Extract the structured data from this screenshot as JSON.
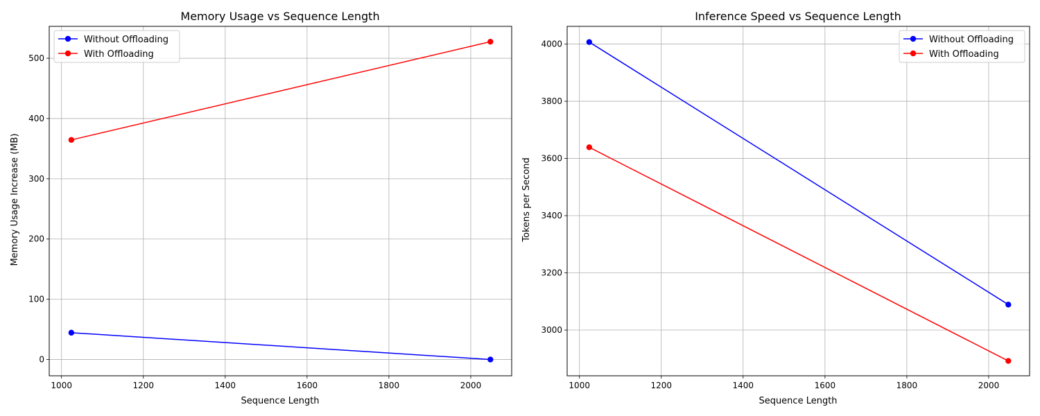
{
  "chart_data": [
    {
      "type": "line",
      "title": "Memory Usage vs Sequence Length",
      "xlabel": "Sequence Length",
      "ylabel": "Memory Usage Increase (MB)",
      "xlim": [
        970,
        2100
      ],
      "ylim": [
        -27,
        553
      ],
      "xticks": [
        1000,
        1200,
        1400,
        1600,
        1800,
        2000
      ],
      "yticks": [
        0,
        100,
        200,
        300,
        400,
        500
      ],
      "grid": true,
      "legend_position": "upper left",
      "series": [
        {
          "name": "Without Offloading",
          "color": "#0000ff",
          "x": [
            1024,
            2048
          ],
          "y": [
            44.5,
            0.0
          ]
        },
        {
          "name": "With Offloading",
          "color": "#ff0000",
          "x": [
            1024,
            2048
          ],
          "y": [
            364.5,
            527.5
          ]
        }
      ]
    },
    {
      "type": "line",
      "title": "Inference Speed vs Sequence Length",
      "xlabel": "Sequence Length",
      "ylabel": "Tokens per Second",
      "xlim": [
        970,
        2100
      ],
      "ylim": [
        2840,
        4062
      ],
      "xticks": [
        1000,
        1200,
        1400,
        1600,
        1800,
        2000
      ],
      "yticks": [
        3000,
        3200,
        3400,
        3600,
        3800,
        4000
      ],
      "grid": true,
      "legend_position": "upper right",
      "series": [
        {
          "name": "Without Offloading",
          "color": "#0000ff",
          "x": [
            1024,
            2048
          ],
          "y": [
            4007,
            3089
          ]
        },
        {
          "name": "With Offloading",
          "color": "#ff0000",
          "x": [
            1024,
            2048
          ],
          "y": [
            3639,
            2892
          ]
        }
      ]
    }
  ]
}
